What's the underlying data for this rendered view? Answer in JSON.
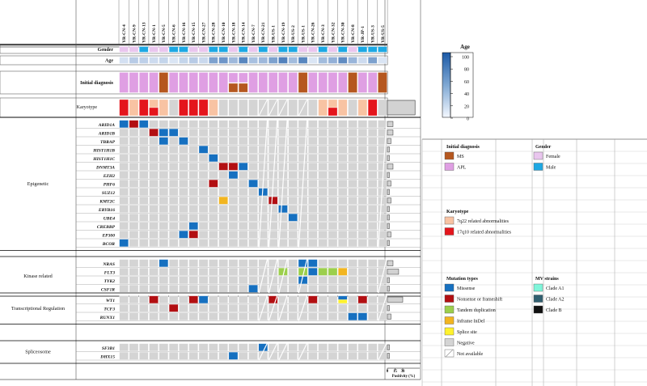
{
  "colors": {
    "ms": "#b5571f",
    "apl": "#df9fe3",
    "female": "#e9c6ee",
    "male": "#1da8e3",
    "k7q22": "#f8c3a3",
    "k17q10": "#e4151c",
    "missense": "#1670c0",
    "nonsense": "#b20f12",
    "tandem": "#9ccf4c",
    "inframe": "#f2b520",
    "splice": "#fff22d",
    "negative": "#d4d4d4",
    "cladeA1": "#7ff5da",
    "cladeA2": "#305f70",
    "cladeB": "#111111",
    "age_low": "#f4f8ff",
    "age_high": "#1c59a6"
  },
  "samples": [
    "YR-CN-4",
    "YR-CN-9",
    "YR-CN-13",
    "YR-CN-1",
    "YR-CN-5",
    "YR-CN-6",
    "YR-CN-16",
    "YR-CN-15",
    "YR-CN-27",
    "YR-CN-28",
    "YR-CN-10",
    "YR-CN-18",
    "YR-CN-14",
    "YR-CN-7",
    "YR-CN-21",
    "YR-US-1",
    "YR-CN-19",
    "YR-US-2",
    "YR-US-1",
    "YR-CN-26",
    "YR-CN-3",
    "YR-CN-32",
    "YR-CN-30",
    "YR-CN-8",
    "YR-JP-1",
    "YR-US-3",
    "YR-US-5"
  ],
  "row_labels": {
    "gender": "Gender",
    "age": "Age",
    "initial_diagnosis": "Initial diagnosis",
    "karyotype": "Karyotype"
  },
  "rows": {
    "gender": [
      "F",
      "F",
      "M",
      "F",
      "F",
      "M",
      "M",
      "F",
      "F",
      "M",
      "M",
      "F",
      "M",
      "F",
      "M",
      "F",
      "M",
      "M",
      "F",
      "F",
      "M",
      "F",
      "M",
      "F",
      "M",
      "M",
      "M"
    ],
    "age": [
      15,
      28,
      25,
      18,
      22,
      12,
      22,
      28,
      20,
      55,
      62,
      40,
      72,
      35,
      40,
      55,
      75,
      38,
      72,
      12,
      38,
      45,
      68,
      42,
      18,
      55,
      12
    ],
    "initial_diagnosis": [
      "APL",
      "APL",
      "APL",
      "APL",
      "MS",
      "APL",
      "APL",
      "APL",
      "APL",
      "APL",
      "APL",
      "MS+APL",
      "MS+APL",
      "APL",
      "APL",
      "APL",
      "APL",
      "APL",
      "MS",
      "APL",
      "APL",
      "APL",
      "APL",
      "MS",
      "APL",
      "APL",
      "MS"
    ],
    "karyotype": [
      "17q10",
      "7q22",
      "17q10",
      "neg",
      "7q22",
      "neg",
      "17q10",
      "17q10",
      "17q10",
      "7q22",
      "neg",
      "neg",
      "neg",
      "neg",
      "na",
      "na",
      "na",
      "neg",
      "na",
      "neg",
      "7q22",
      "17q10",
      "7q22",
      "neg",
      "7q22",
      "17q10",
      "neg"
    ],
    "karyotype_stacked": [
      3,
      21
    ]
  },
  "gene_groups": [
    {
      "name": "Epigenetic",
      "genes": [
        "ARID1A",
        "ARID1B",
        "TBRAP",
        "HIST1H1B",
        "HIST1H1C",
        "DNMT3A",
        "EZH2",
        "PHF6",
        "SUZ12",
        "KMT2C",
        "ERYB16",
        "UBE4",
        "CREBBP",
        "EP300",
        "BCOR"
      ]
    },
    {
      "name": "Kinase related",
      "genes": [
        "NRAS",
        "FLT3",
        "TYK2",
        "CSF1R"
      ]
    },
    {
      "name": "Transcriptional Regulation",
      "genes": [
        "WT1",
        "TCF3",
        "RUNX1"
      ]
    },
    {
      "name": "Spliceosome",
      "genes": [
        "SF3B1",
        "DHX15"
      ]
    }
  ],
  "mutations": {
    "ARID1A": [
      [
        0,
        "missense"
      ],
      [
        1,
        "nonsense"
      ],
      [
        2,
        "missense"
      ]
    ],
    "ARID1B": [
      [
        3,
        "nonsense"
      ],
      [
        4,
        "missense"
      ],
      [
        5,
        "missense"
      ]
    ],
    "TBRAP": [
      [
        4,
        "missense"
      ],
      [
        6,
        "missense"
      ]
    ],
    "HIST1H1B": [
      [
        8,
        "missense"
      ]
    ],
    "HIST1H1C": [
      [
        9,
        "missense"
      ]
    ],
    "DNMT3A": [
      [
        10,
        "nonsense"
      ],
      [
        11,
        "nonsense"
      ],
      [
        12,
        "missense"
      ]
    ],
    "EZH2": [
      [
        11,
        "missense"
      ]
    ],
    "PHF6": [
      [
        9,
        "nonsense"
      ],
      [
        13,
        "missense"
      ]
    ],
    "SUZ12": [
      [
        14,
        "missense"
      ]
    ],
    "KMT2C": [
      [
        10,
        "inframe"
      ],
      [
        15,
        "nonsense"
      ]
    ],
    "ERYB16": [
      [
        16,
        "missense"
      ]
    ],
    "UBE4": [
      [
        17,
        "missense"
      ]
    ],
    "CREBBP": [
      [
        7,
        "missense"
      ]
    ],
    "EP300": [
      [
        6,
        "missense"
      ],
      [
        7,
        "nonsense"
      ]
    ],
    "BCOR": [
      [
        0,
        "missense"
      ]
    ],
    "NRAS": [
      [
        4,
        "missense"
      ],
      [
        18,
        "missense"
      ],
      [
        19,
        "missense"
      ]
    ],
    "FLT3": [
      [
        16,
        "tandem"
      ],
      [
        18,
        "tandem"
      ],
      [
        19,
        "missense"
      ],
      [
        20,
        "tandem"
      ],
      [
        21,
        "tandem"
      ],
      [
        22,
        "inframe"
      ]
    ],
    "TYK2": [
      [
        18,
        "missense"
      ]
    ],
    "CSF1R": [
      [
        13,
        "missense"
      ]
    ],
    "WT1": [
      [
        3,
        "nonsense"
      ],
      [
        7,
        "nonsense"
      ],
      [
        8,
        "missense"
      ],
      [
        15,
        "nonsense"
      ],
      [
        19,
        "nonsense"
      ],
      [
        22,
        "missense"
      ],
      [
        22,
        "splice"
      ],
      [
        24,
        "nonsense"
      ]
    ],
    "TCF3": [
      [
        5,
        "nonsense"
      ]
    ],
    "RUNX1": [
      [
        23,
        "missense"
      ],
      [
        24,
        "missense"
      ]
    ],
    "SF3B1": [
      [
        14,
        "missense"
      ]
    ],
    "DHX15": [
      [
        11,
        "missense"
      ]
    ]
  },
  "na_columns": [
    14,
    15,
    16,
    18,
    26
  ],
  "positivity": {
    "ARID1A": 11,
    "ARID1B": 11,
    "TBRAP": 7,
    "HIST1H1B": 4,
    "HIST1H1C": 4,
    "DNMT3A": 11,
    "EZH2": 4,
    "PHF6": 7,
    "SUZ12": 4,
    "KMT2C": 7,
    "ERYB16": 4,
    "UBE4": 4,
    "CREBBP": 4,
    "EP300": 7,
    "BCOR": 4,
    "NRAS": 11,
    "FLT3": 22,
    "TYK2": 4,
    "CSF1R": 4,
    "WT1": 30,
    "TCF3": 4,
    "RUNX1": 7,
    "SF3B1": 4,
    "DHX15": 4
  },
  "karyotype_positivity": 54,
  "positivity_axis": {
    "label": "Positivity (%)",
    "ticks": [
      "0",
      "15",
      "30"
    ]
  },
  "age_scale": {
    "title": "Age",
    "ticks": [
      "100",
      "80",
      "60",
      "40",
      "20",
      "0"
    ]
  },
  "legend": {
    "initial_diagnosis": {
      "title": "Initial diagnosis",
      "items": [
        {
          "key": "ms",
          "label": "MS"
        },
        {
          "key": "apl",
          "label": "APL"
        }
      ]
    },
    "gender": {
      "title": "Gender",
      "items": [
        {
          "key": "female",
          "label": "Female"
        },
        {
          "key": "male",
          "label": "Male"
        }
      ]
    },
    "karyotype": {
      "title": "Karyotype",
      "items": [
        {
          "key": "k7q22",
          "label": "7q22 related abnormalities"
        },
        {
          "key": "k17q10",
          "label": "17q10 related abnormalities"
        }
      ]
    },
    "mutation_types": {
      "title": "Mutation types",
      "items": [
        {
          "key": "missense",
          "label": "Missense"
        },
        {
          "key": "nonsense",
          "label": "Nonsense or frameshift"
        },
        {
          "key": "tandem",
          "label": "Tandem duplication"
        },
        {
          "key": "inframe",
          "label": "Inframe InDel"
        },
        {
          "key": "splice",
          "label": "Splice site"
        },
        {
          "key": "negative",
          "label": "Negative"
        },
        {
          "key": "na",
          "label": "Not available"
        }
      ]
    },
    "mv_strains": {
      "title": "MV strains",
      "items": [
        {
          "key": "cladeA1",
          "label": "Clade A1"
        },
        {
          "key": "cladeA2",
          "label": "Clade A2"
        },
        {
          "key": "cladeB",
          "label": "Clade B"
        }
      ]
    }
  }
}
